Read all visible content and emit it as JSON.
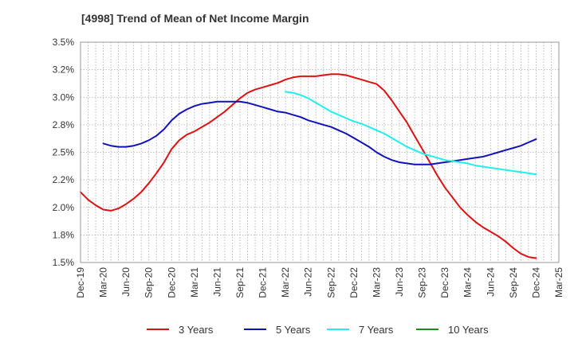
{
  "chart_data": {
    "type": "line",
    "title": "[4998]  Trend of Mean of Net Income Margin",
    "xlabel": "",
    "ylabel": "",
    "x_ticks": [
      "Dec-19",
      "Mar-20",
      "Jun-20",
      "Sep-20",
      "Dec-20",
      "Mar-21",
      "Jun-21",
      "Sep-21",
      "Dec-21",
      "Mar-22",
      "Jun-22",
      "Sep-22",
      "Dec-22",
      "Mar-23",
      "Jun-23",
      "Sep-23",
      "Dec-23",
      "Mar-24",
      "Jun-24",
      "Sep-24",
      "Dec-24",
      "Mar-25"
    ],
    "y_ticks": [
      "1.5%",
      "1.8%",
      "2.0%",
      "2.2%",
      "2.5%",
      "2.8%",
      "3.0%",
      "3.2%",
      "3.5%"
    ],
    "ylim": [
      1.5,
      3.5
    ],
    "grid": true,
    "legend_position": "bottom",
    "series": [
      {
        "name": "3 Years",
        "color": "#dd1111",
        "x": [
          "Dec-19",
          "Jan-20",
          "Feb-20",
          "Mar-20",
          "Apr-20",
          "May-20",
          "Jun-20",
          "Jul-20",
          "Aug-20",
          "Sep-20",
          "Oct-20",
          "Nov-20",
          "Dec-20",
          "Jan-21",
          "Feb-21",
          "Mar-21",
          "Apr-21",
          "May-21",
          "Jun-21",
          "Jul-21",
          "Aug-21",
          "Sep-21",
          "Oct-21",
          "Nov-21",
          "Dec-21",
          "Jan-22",
          "Feb-22",
          "Mar-22",
          "Apr-22",
          "May-22",
          "Jun-22",
          "Jul-22",
          "Aug-22",
          "Sep-22",
          "Oct-22",
          "Nov-22",
          "Dec-22",
          "Jan-23",
          "Feb-23",
          "Mar-23",
          "Apr-23",
          "May-23",
          "Jun-23",
          "Jul-23",
          "Aug-23",
          "Sep-23",
          "Oct-23",
          "Nov-23",
          "Dec-23",
          "Jan-24",
          "Feb-24",
          "Mar-24",
          "Apr-24",
          "May-24",
          "Jun-24",
          "Jul-24",
          "Aug-24",
          "Sep-24",
          "Oct-24",
          "Nov-24",
          "Dec-24"
        ],
        "values": [
          2.14,
          2.07,
          2.02,
          1.98,
          1.97,
          1.99,
          2.03,
          2.08,
          2.14,
          2.22,
          2.31,
          2.41,
          2.53,
          2.61,
          2.66,
          2.69,
          2.73,
          2.77,
          2.82,
          2.87,
          2.93,
          2.99,
          3.04,
          3.07,
          3.09,
          3.11,
          3.13,
          3.16,
          3.18,
          3.19,
          3.19,
          3.19,
          3.2,
          3.21,
          3.21,
          3.2,
          3.18,
          3.16,
          3.14,
          3.12,
          3.06,
          2.97,
          2.87,
          2.77,
          2.65,
          2.53,
          2.41,
          2.29,
          2.18,
          2.09,
          2.0,
          1.93,
          1.87,
          1.82,
          1.78,
          1.74,
          1.69,
          1.63,
          1.58,
          1.55,
          1.54
        ]
      },
      {
        "name": "5 Years",
        "color": "#1111bb",
        "x": [
          "Dec-19",
          "Jan-20",
          "Feb-20",
          "Mar-20",
          "Apr-20",
          "May-20",
          "Jun-20",
          "Jul-20",
          "Aug-20",
          "Sep-20",
          "Oct-20",
          "Nov-20",
          "Dec-20",
          "Jan-21",
          "Feb-21",
          "Mar-21",
          "Apr-21",
          "May-21",
          "Jun-21",
          "Jul-21",
          "Aug-21",
          "Sep-21",
          "Oct-21",
          "Nov-21",
          "Dec-21",
          "Jan-22",
          "Feb-22",
          "Mar-22",
          "Apr-22",
          "May-22",
          "Jun-22",
          "Jul-22",
          "Aug-22",
          "Sep-22",
          "Oct-22",
          "Nov-22",
          "Dec-22",
          "Jan-23",
          "Feb-23",
          "Mar-23",
          "Apr-23",
          "May-23",
          "Jun-23",
          "Jul-23",
          "Aug-23",
          "Sep-23",
          "Oct-23",
          "Nov-23",
          "Dec-23",
          "Jan-24",
          "Feb-24",
          "Mar-24",
          "Apr-24",
          "May-24",
          "Jun-24",
          "Jul-24",
          "Aug-24",
          "Sep-24",
          "Oct-24",
          "Nov-24",
          "Dec-24"
        ],
        "values": [
          null,
          null,
          null,
          2.58,
          2.56,
          2.55,
          2.55,
          2.56,
          2.58,
          2.61,
          2.65,
          2.71,
          2.79,
          2.85,
          2.89,
          2.92,
          2.94,
          2.95,
          2.96,
          2.96,
          2.96,
          2.96,
          2.95,
          2.93,
          2.91,
          2.89,
          2.87,
          2.86,
          2.84,
          2.82,
          2.79,
          2.77,
          2.75,
          2.73,
          2.7,
          2.67,
          2.63,
          2.59,
          2.55,
          2.5,
          2.46,
          2.43,
          2.41,
          2.4,
          2.39,
          2.39,
          2.39,
          2.4,
          2.41,
          2.42,
          2.43,
          2.44,
          2.45,
          2.46,
          2.48,
          2.5,
          2.52,
          2.54,
          2.56,
          2.59,
          2.62
        ]
      },
      {
        "name": "7 Years",
        "color": "#22eeee",
        "x": [
          "Mar-22",
          "Apr-22",
          "May-22",
          "Jun-22",
          "Jul-22",
          "Aug-22",
          "Sep-22",
          "Oct-22",
          "Nov-22",
          "Dec-22",
          "Jan-23",
          "Feb-23",
          "Mar-23",
          "Apr-23",
          "May-23",
          "Jun-23",
          "Jul-23",
          "Aug-23",
          "Sep-23",
          "Oct-23",
          "Nov-23",
          "Dec-23",
          "Jan-24",
          "Feb-24",
          "Mar-24",
          "Apr-24",
          "May-24",
          "Jun-24",
          "Jul-24",
          "Aug-24",
          "Sep-24",
          "Oct-24",
          "Nov-24",
          "Dec-24"
        ],
        "values": [
          3.05,
          3.04,
          3.02,
          2.99,
          2.95,
          2.91,
          2.87,
          2.84,
          2.81,
          2.78,
          2.76,
          2.73,
          2.7,
          2.67,
          2.63,
          2.59,
          2.55,
          2.52,
          2.49,
          2.47,
          2.45,
          2.43,
          2.42,
          2.41,
          2.4,
          2.38,
          2.37,
          2.36,
          2.35,
          2.34,
          2.33,
          2.32,
          2.31,
          2.3
        ]
      },
      {
        "name": "10 Years",
        "color": "#228822",
        "x": [],
        "values": []
      }
    ]
  }
}
